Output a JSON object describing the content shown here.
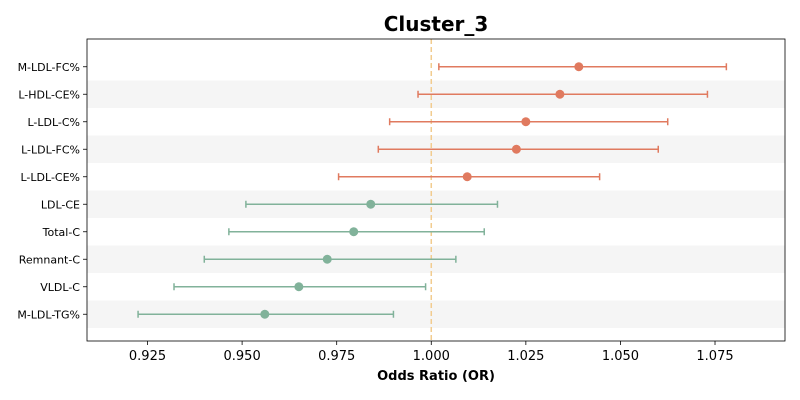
{
  "chart_data": {
    "type": "scatter",
    "subtype": "forest-plot",
    "title": "Cluster_3",
    "xlabel": "Odds Ratio (OR)",
    "ylabel": "",
    "xlim": [
      0.909,
      1.0935
    ],
    "reference_line": 1.0,
    "x_ticks": [
      "0.925",
      "0.950",
      "0.975",
      "1.000",
      "1.025",
      "1.050",
      "1.075"
    ],
    "x_tick_values": [
      0.925,
      0.95,
      0.975,
      1.0,
      1.025,
      1.05,
      1.075
    ],
    "grid": false,
    "row_banding": true,
    "colors": {
      "positive": "#E07A5F",
      "negative": "#81B29A",
      "reference": "#F2CC8F",
      "band": "#F5F5F5"
    },
    "rows": [
      {
        "label": "M-LDL-FC%",
        "or": 1.039,
        "ci_low": 1.002,
        "ci_high": 1.078,
        "group": "positive"
      },
      {
        "label": "L-HDL-CE%",
        "or": 1.034,
        "ci_low": 0.9965,
        "ci_high": 1.073,
        "group": "positive"
      },
      {
        "label": "L-LDL-C%",
        "or": 1.025,
        "ci_low": 0.989,
        "ci_high": 1.0625,
        "group": "positive"
      },
      {
        "label": "L-LDL-FC%",
        "or": 1.0225,
        "ci_low": 0.986,
        "ci_high": 1.06,
        "group": "positive"
      },
      {
        "label": "L-LDL-CE%",
        "or": 1.0095,
        "ci_low": 0.9755,
        "ci_high": 1.0445,
        "group": "positive"
      },
      {
        "label": "LDL-CE",
        "or": 0.984,
        "ci_low": 0.951,
        "ci_high": 1.0175,
        "group": "negative"
      },
      {
        "label": "Total-C",
        "or": 0.9795,
        "ci_low": 0.9465,
        "ci_high": 1.014,
        "group": "negative"
      },
      {
        "label": "Remnant-C",
        "or": 0.9725,
        "ci_low": 0.94,
        "ci_high": 1.0065,
        "group": "negative"
      },
      {
        "label": "VLDL-C",
        "or": 0.965,
        "ci_low": 0.932,
        "ci_high": 0.9985,
        "group": "negative"
      },
      {
        "label": "M-LDL-TG%",
        "or": 0.956,
        "ci_low": 0.9225,
        "ci_high": 0.99,
        "group": "negative"
      }
    ]
  }
}
